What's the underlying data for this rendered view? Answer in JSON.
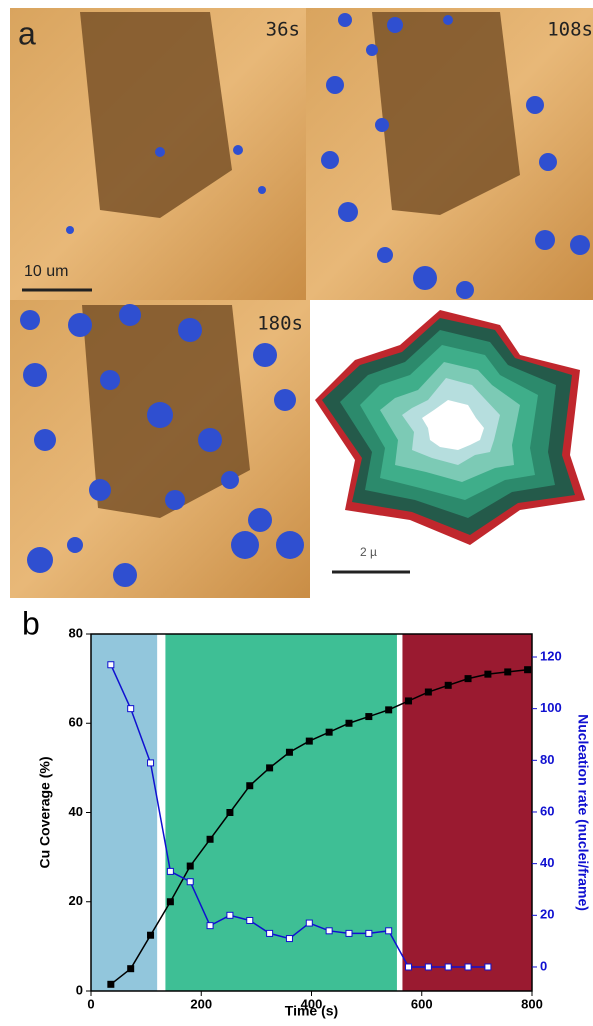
{
  "panel_a": {
    "label": "a",
    "times": [
      "36s",
      "108s",
      "180s"
    ],
    "scale_bar_left": "10  um",
    "scale_bar_right": "2 µ"
  },
  "chart_data": {
    "type": "line",
    "panel_label": "b",
    "x_label": "Time (s)",
    "y_label": "Cu Coverage (%)",
    "y2_label": "Nucleation rate (nuclei/frame)",
    "xlim": [
      0,
      800
    ],
    "xticks": [
      0,
      200,
      400,
      600,
      800
    ],
    "ylim": [
      0,
      80
    ],
    "yticks": [
      0,
      20,
      40,
      60,
      80
    ],
    "y2lim": [
      -9.3,
      128.9
    ],
    "y2ticks": [
      0,
      20,
      40,
      60,
      80,
      100,
      120
    ],
    "shaded_regions": [
      {
        "start": 0,
        "end": 120,
        "color": "#92c6dc"
      },
      {
        "start": 135,
        "end": 555,
        "color": "#3ebf95"
      },
      {
        "start": 565,
        "end": 800,
        "color": "#9a1a30"
      }
    ],
    "series": [
      {
        "color": "#000000",
        "marker": "filled-square",
        "x": [
          36,
          72,
          108,
          144,
          180,
          216,
          252,
          288,
          324,
          360,
          396,
          432,
          468,
          504,
          540,
          576,
          612,
          648,
          684,
          720,
          756,
          792
        ],
        "values": [
          1.5,
          5,
          12.5,
          20,
          28,
          34,
          40,
          46,
          50,
          53.5,
          56,
          58,
          60,
          61.5,
          63,
          65,
          67,
          68.5,
          70,
          71,
          71.5,
          72
        ]
      },
      {
        "color": "#1010d0",
        "marker": "open-square",
        "axis": "y2",
        "x": [
          36,
          72,
          108,
          144,
          180,
          216,
          252,
          288,
          324,
          360,
          396,
          432,
          468,
          504,
          540,
          576,
          612,
          648,
          684,
          720
        ],
        "values": [
          117,
          100,
          79,
          37,
          33,
          16,
          20,
          18,
          13,
          11,
          17,
          14,
          13,
          13,
          14,
          0,
          0,
          0,
          0,
          0
        ]
      }
    ]
  }
}
